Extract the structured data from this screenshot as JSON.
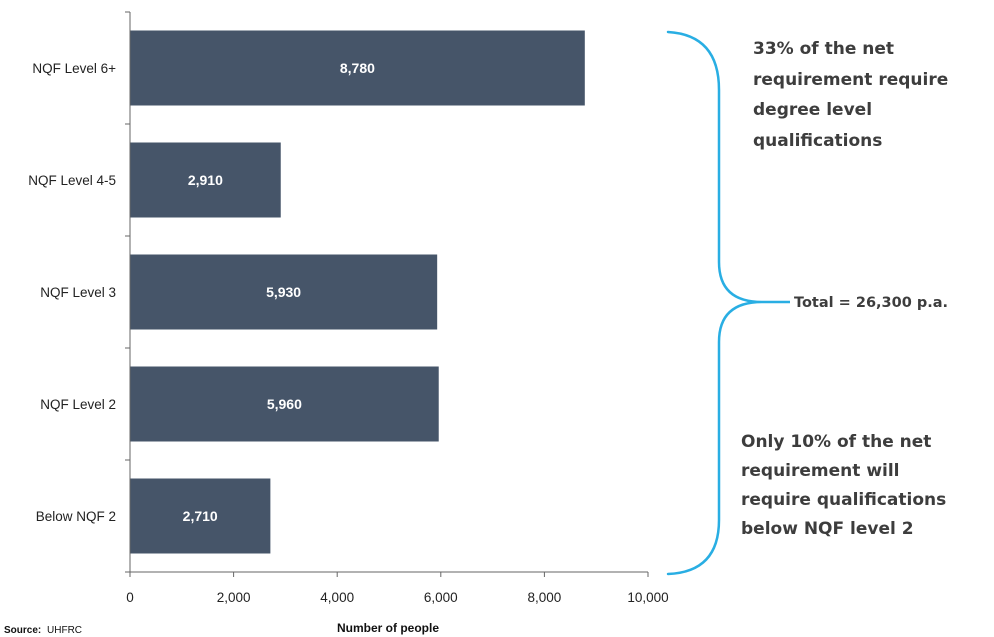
{
  "chart_data": {
    "type": "bar",
    "orientation": "horizontal",
    "categories": [
      "NQF Level 6+",
      "NQF Level 4-5",
      "NQF Level 3",
      "NQF Level 2",
      "Below NQF 2"
    ],
    "values": [
      8780,
      2910,
      5930,
      5960,
      2710
    ],
    "value_labels": [
      "8,780",
      "2,910",
      "5,930",
      "5,960",
      "2,710"
    ],
    "xlabel": "Number of people",
    "xlim": [
      0,
      10000
    ],
    "x_ticks": [
      0,
      2000,
      4000,
      6000,
      8000,
      10000
    ],
    "x_tick_labels": [
      "0",
      "2,000",
      "4,000",
      "6,000",
      "8,000",
      "10,000"
    ],
    "bar_color": "#465569",
    "grid": false
  },
  "annotations": {
    "bracket_color": "#29aee3",
    "top_note": [
      "33% of the net",
      "requirement require",
      "degree level",
      "qualifications"
    ],
    "total_note": "Total = 26,300 p.a.",
    "bottom_note": [
      "Only 10% of the net",
      "requirement will",
      "require qualifications",
      "below NQF level 2"
    ]
  },
  "source": {
    "label": "Source:",
    "text": "UHFRC"
  }
}
